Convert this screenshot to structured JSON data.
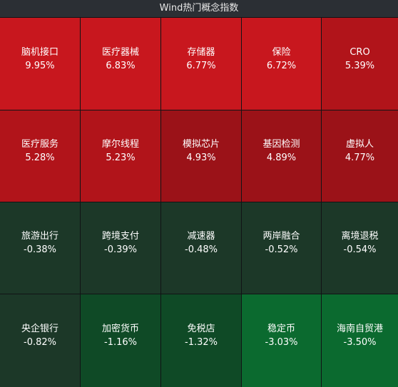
{
  "title": "Wind热门概念指数",
  "tiles": [
    {
      "name": "脑机接口",
      "change": "9.95%",
      "color": "#c8171e"
    },
    {
      "name": "医疗器械",
      "change": "6.83%",
      "color": "#c8171e"
    },
    {
      "name": "存储器",
      "change": "6.77%",
      "color": "#c8171e"
    },
    {
      "name": "保险",
      "change": "6.72%",
      "color": "#c8171e"
    },
    {
      "name": "CRO",
      "change": "5.39%",
      "color": "#b1141a"
    },
    {
      "name": "医疗服务",
      "change": "5.28%",
      "color": "#b1141a"
    },
    {
      "name": "摩尔线程",
      "change": "5.23%",
      "color": "#b1141a"
    },
    {
      "name": "模拟芯片",
      "change": "4.93%",
      "color": "#9b1218"
    },
    {
      "name": "基因检测",
      "change": "4.89%",
      "color": "#9b1218"
    },
    {
      "name": "虚拟人",
      "change": "4.77%",
      "color": "#9b1218"
    },
    {
      "name": "旅游出行",
      "change": "-0.38%",
      "color": "#1c3828"
    },
    {
      "name": "跨境支付",
      "change": "-0.39%",
      "color": "#1c3828"
    },
    {
      "name": "减速器",
      "change": "-0.48%",
      "color": "#1c3828"
    },
    {
      "name": "两岸融合",
      "change": "-0.52%",
      "color": "#1c3828"
    },
    {
      "name": "离境退税",
      "change": "-0.54%",
      "color": "#1c3828"
    },
    {
      "name": "央企银行",
      "change": "-0.82%",
      "color": "#1c3828"
    },
    {
      "name": "加密货币",
      "change": "-1.16%",
      "color": "#0f4a26"
    },
    {
      "name": "免税店",
      "change": "-1.32%",
      "color": "#0f4a26"
    },
    {
      "name": "稳定币",
      "change": "-3.03%",
      "color": "#0b6a2f"
    },
    {
      "name": "海南自贸港",
      "change": "-3.50%",
      "color": "#0b6a2f"
    }
  ]
}
